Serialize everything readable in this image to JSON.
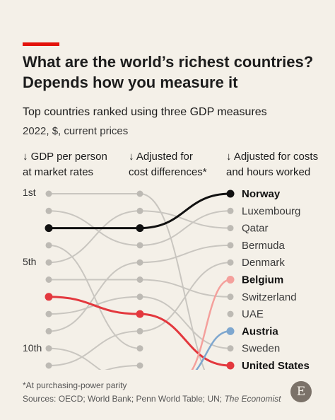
{
  "header": {
    "title_line1": "What are the world’s richest countries?",
    "title_line2": "Depends how you measure it",
    "subtitle": "Top countries ranked using three GDP measures",
    "units": "2022, $, current prices"
  },
  "columns": {
    "col1_line1": "↓ GDP per person",
    "col1_line2": "at market rates",
    "col2_line1": "↓ Adjusted for",
    "col2_line2": "cost differences*",
    "col3_line1": "↓ Adjusted for costs",
    "col3_line2": "and hours worked"
  },
  "rank_labels": {
    "first": "1st",
    "fifth": "5th",
    "tenth": "10th"
  },
  "footer": {
    "note": "*At purchasing-power parity",
    "sources_prefix": "Sources: OECD; World Bank; Penn World Table; UN; ",
    "sources_italic": "The Economist",
    "logo": "E"
  },
  "colors": {
    "background": "#f4f0e8",
    "accent": "#e3120b",
    "norway": "#111111",
    "united_states": "#e3383e",
    "belgium": "#f4a09c",
    "austria": "#7ea7cf",
    "other_line": "#c9c6c0",
    "dot": "#bdbab4"
  },
  "chart_data": {
    "type": "bump",
    "x": [
      "GDP per person at market rates",
      "Adjusted for cost differences",
      "Adjusted for costs and hours worked"
    ],
    "rank_range": [
      1,
      11
    ],
    "final_ranking": [
      "Norway",
      "Luxembourg",
      "Qatar",
      "Bermuda",
      "Denmark",
      "Belgium",
      "Switzerland",
      "UAE",
      "Austria",
      "Sweden",
      "United States"
    ],
    "highlighted": [
      {
        "name": "Norway",
        "ranks": [
          3,
          3,
          1
        ]
      },
      {
        "name": "United States",
        "ranks": [
          7,
          8,
          11
        ]
      },
      {
        "name": "Belgium",
        "ranks": [
          null,
          null,
          6
        ]
      },
      {
        "name": "Austria",
        "ranks": [
          null,
          null,
          9
        ]
      }
    ]
  }
}
